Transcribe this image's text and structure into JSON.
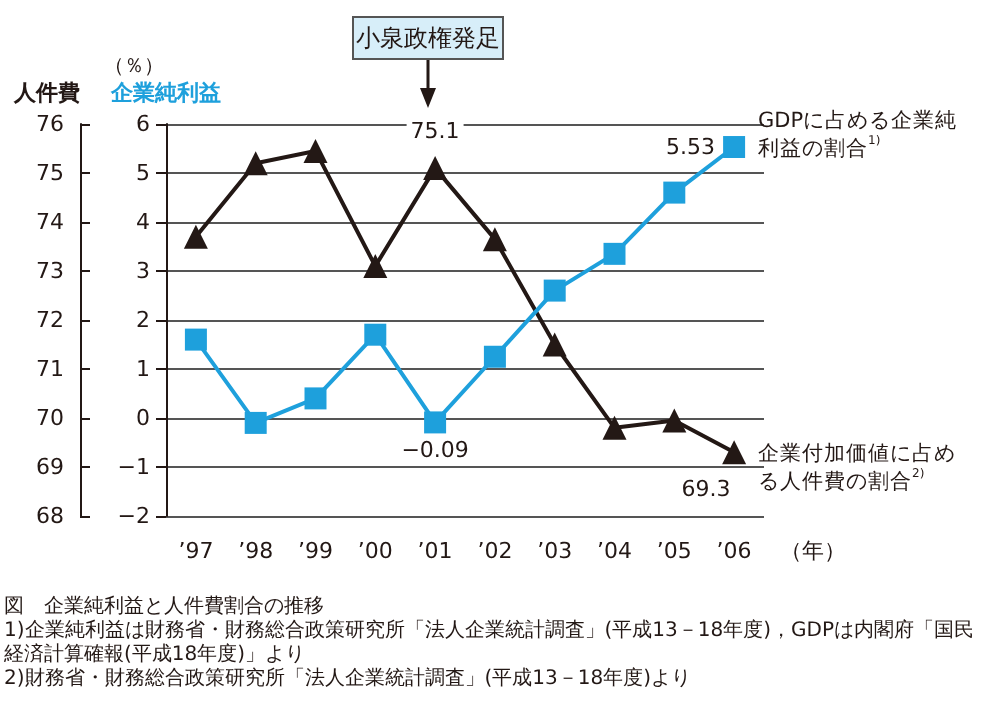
{
  "chart_data": {
    "type": "line",
    "title": "図　企業純利益と人件費割合の推移",
    "xlabel": "（年）",
    "ylabel": "人件費",
    "y2label": "企業純利益",
    "categories": [
      "’97",
      "’98",
      "’99",
      "’00",
      "’01",
      "’02",
      "’03",
      "’04",
      "’05",
      "’06"
    ],
    "series": [
      {
        "name": "企業付加価値に占める人件費の割合$^{2)}$",
        "color": "#231815",
        "marker": "triangle",
        "values": [
          73.7,
          75.2,
          75.45,
          73.1,
          75.1,
          73.65,
          71.5,
          69.8,
          69.95,
          69.3
        ],
        "value_labels": [
          null,
          null,
          null,
          null,
          "75.1",
          null,
          null,
          null,
          null,
          "69.3"
        ]
      },
      {
        "name": "GDPに占める企業純利益の割合$^{1)}$",
        "color": "#1ea0dc",
        "marker": "square",
        "axis": "y2",
        "values": [
          1.6,
          -0.1,
          0.4,
          1.7,
          -0.09,
          1.25,
          2.6,
          3.35,
          4.6,
          5.53
        ],
        "value_labels": [
          null,
          null,
          null,
          null,
          "−0.09",
          null,
          null,
          null,
          null,
          "5.53"
        ]
      }
    ],
    "ylim": [
      68,
      76
    ],
    "yticks": [
      68,
      69,
      70,
      71,
      72,
      73,
      74,
      75,
      76
    ],
    "y2lim": [
      -2,
      6
    ],
    "y2ticks": [
      {
        "value": -2,
        "label": "−2"
      },
      {
        "value": -1,
        "label": "−1"
      },
      0,
      1,
      2,
      3,
      4,
      5,
      6
    ],
    "grid": "y",
    "legend": false,
    "annotations": [
      "小泉政権発足",
      "（％）",
      "1)企業純利益は財務省・財務総合政策研究所「法人企業統計調査」(平成13－18年度)，GDPは内閣府「国民経済計算確報(平成18年度)」より",
      "2)財務省・財務総合政策研究所「法人企業統計調査」(平成13－18年度)より"
    ]
  }
}
